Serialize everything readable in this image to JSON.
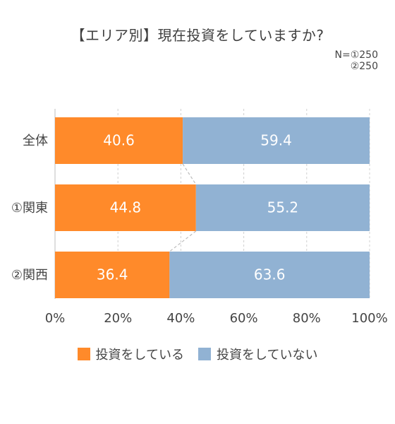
{
  "chart_data": {
    "type": "bar",
    "orientation": "horizontal",
    "stacked": true,
    "title": "【エリア別】現在投資をしていますか?",
    "note": {
      "lines": [
        "N=①250",
        "②250"
      ]
    },
    "categories": [
      "全体",
      "①関東",
      "②関西"
    ],
    "series": [
      {
        "name": "投資をしている",
        "color": "#ff8a2a",
        "values": [
          40.6,
          44.8,
          36.4
        ]
      },
      {
        "name": "投資をしていない",
        "color": "#91b2d3",
        "values": [
          59.4,
          55.2,
          63.6
        ]
      }
    ],
    "xlim": [
      0,
      100
    ],
    "xticks": [
      "0%",
      "20%",
      "40%",
      "60%",
      "80%",
      "100%"
    ],
    "grid": true,
    "legend": "bottom-center",
    "connector_lines": true,
    "colors": {
      "grid": "#d0d0d0",
      "axis": "#bdbdbd",
      "connector": "#bdbdbd"
    }
  }
}
